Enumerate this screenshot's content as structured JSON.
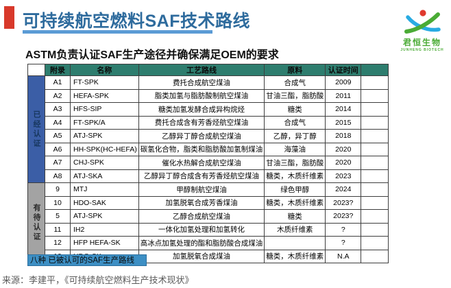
{
  "header": {
    "title": "可持续航空燃料SAF技术路线"
  },
  "logo": {
    "name_cn": "君恒生物",
    "name_en": "JUNHENG BIOTECH"
  },
  "subtitle": "ASTM负责认证SAF生产途径并确保满足OEM的要求",
  "table": {
    "columns": [
      "附录",
      "名称",
      "工艺路线",
      "原料",
      "认证时间"
    ],
    "groups": [
      {
        "label": "已经认证",
        "rows": [
          [
            "A1",
            "FT-SPK",
            "费托合成航空煤油",
            "合成气",
            "2009"
          ],
          [
            "A2",
            "HEFA-SPK",
            "脂类加氢与脂肪酸制航空煤油",
            "甘油三酯，脂肪酸",
            "2011"
          ],
          [
            "A3",
            "HFS-SIP",
            "糖类加氢发酵合成异构烷烃",
            "糖类",
            "2014"
          ],
          [
            "A4",
            "FT-SPK/A",
            "费托合成含有芳香烃航空煤油",
            "合成气",
            "2015"
          ],
          [
            "A5",
            "ATJ-SPK",
            "乙醇异丁醇合成航空煤油",
            "乙醇，异丁醇",
            "2018"
          ],
          [
            "A6",
            "HH-SPK(HC-HEFA)",
            "碳氢化合物，脂类和脂肪酸加氢制煤油",
            "海藻油",
            "2020"
          ],
          [
            "A7",
            "CHJ-SPK",
            "催化水热解合成航空煤油",
            "甘油三酯，脂肪酸",
            "2020"
          ],
          [
            "A8",
            "ATJ-SKA",
            "乙醇异丁醇合成含有芳香烃航空煤油",
            "糖类，木质纤维素",
            "2023"
          ]
        ]
      },
      {
        "label": "有待认证",
        "rows": [
          [
            "9",
            "MTJ",
            "甲醇制航空煤油",
            "绿色甲醇",
            "2024"
          ],
          [
            "10",
            "HDO-SAK",
            "加氢脱氧合成芳香煤油",
            "糖类，木质纤维素",
            "2023?"
          ],
          [
            "5",
            "ATJ-SPK",
            "乙醇合成航空煤油",
            "糖类",
            "2023?"
          ],
          [
            "11",
            "IH2",
            "一体化加氢处理和加氢转化",
            "木质纤维素",
            "?"
          ],
          [
            "12",
            "HFP HEFA-SK",
            "高冰点加氢处理的酯和脂肪酸合成煤油",
            "",
            "?"
          ],
          [
            "13",
            "HDO-SK",
            "加氢脱氧合成煤油",
            "糖类，木质纤维素",
            "N.A"
          ]
        ]
      }
    ]
  },
  "footer": {
    "badge": "八种 已被认可的SAF生产路线",
    "source": "来源：李建平，《可持续航空燃料生产技术现状》"
  },
  "colors": {
    "title_text": "#2e6b9d",
    "title_underline": "#5b9bd5",
    "accent_red": "#d8392b",
    "table_header_bg": "#2e7d6e",
    "group_certified_bg": "#3b5ea6",
    "group_certified_text": "#17375e",
    "group_pending_bg": "#a3a3a3",
    "badge_bg": "#3d8fc4",
    "logo_green": "#4aab35",
    "logo_blue": "#29abe2",
    "logo_red": "#e0392e"
  }
}
